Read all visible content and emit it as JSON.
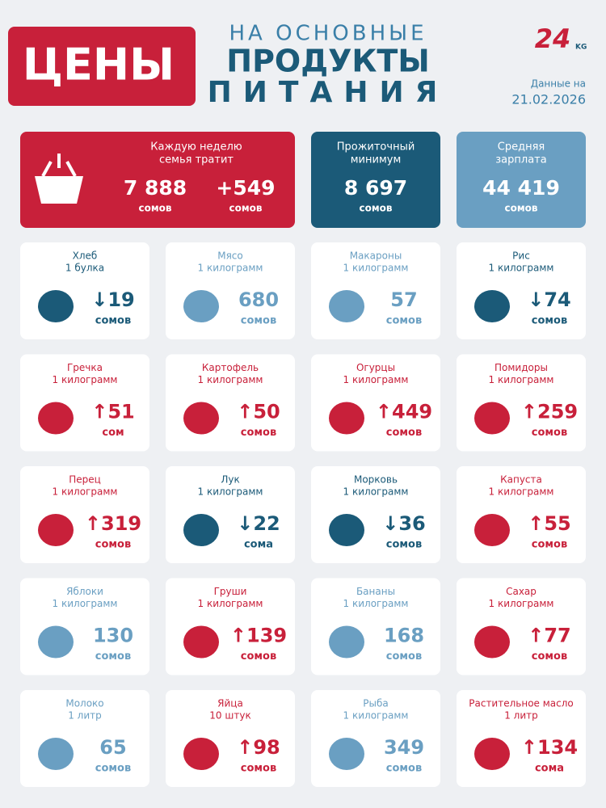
{
  "header": {
    "title": "ЦЕНЫ",
    "subtitle": [
      "НА ОСНОВНЫЕ",
      "ПРОДУКТЫ",
      "ПИТАНИЯ"
    ],
    "logo": "24",
    "logo_suffix": "KG",
    "date_label": "Данные на",
    "date": "21.02.2026"
  },
  "summary": [
    {
      "label": [
        "Каждую неделю",
        "семья тратит"
      ],
      "value": "7 888",
      "unit": "сомов",
      "change": "+549",
      "change_unit": "сомов",
      "color": "#c8203a"
    },
    {
      "label": [
        "Прожиточный",
        "минимум"
      ],
      "value": "8 697",
      "unit": "сомов",
      "color": "#1b5a78"
    },
    {
      "label": [
        "Средняя",
        "зарплата"
      ],
      "value": "44 419",
      "unit": "сомов",
      "color": "#6a9fc2"
    }
  ],
  "items": [
    {
      "name": "Хлеб",
      "quantity": "1 булка",
      "value": "↓19",
      "unit": "сомов",
      "color": "#1b5a78"
    },
    {
      "name": "Мясо",
      "quantity": "1 килограмм",
      "value": "680",
      "unit": "сомов",
      "color": "#6a9fc2"
    },
    {
      "name": "Макароны",
      "quantity": "1 килограмм",
      "value": "57",
      "unit": "сомов",
      "color": "#6a9fc2"
    },
    {
      "name": "Рис",
      "quantity": "1 килограмм",
      "value": "↓74",
      "unit": "сомов",
      "color": "#1b5a78"
    },
    {
      "name": "Гречка",
      "quantity": "1 килограмм",
      "value": "↑51",
      "unit": "сом",
      "color": "#c8203a"
    },
    {
      "name": "Картофель",
      "quantity": "1 килограмм",
      "value": "↑50",
      "unit": "сомов",
      "color": "#c8203a"
    },
    {
      "name": "Огурцы",
      "quantity": "1 килограмм",
      "value": "↑449",
      "unit": "сомов",
      "color": "#c8203a"
    },
    {
      "name": "Помидоры",
      "quantity": "1 килограмм",
      "value": "↑259",
      "unit": "сомов",
      "color": "#c8203a"
    },
    {
      "name": "Перец",
      "quantity": "1 килограмм",
      "value": "↑319",
      "unit": "сомов",
      "color": "#c8203a"
    },
    {
      "name": "Лук",
      "quantity": "1 килограмм",
      "value": "↓22",
      "unit": "сома",
      "color": "#1b5a78"
    },
    {
      "name": "Морковь",
      "quantity": "1 килограмм",
      "value": "↓36",
      "unit": "сомов",
      "color": "#1b5a78"
    },
    {
      "name": "Капуста",
      "quantity": "1 килограмм",
      "value": "↑55",
      "unit": "сомов",
      "color": "#c8203a"
    },
    {
      "name": "Яблоки",
      "quantity": "1 килограмм",
      "value": "130",
      "unit": "сомов",
      "color": "#6a9fc2"
    },
    {
      "name": "Груши",
      "quantity": "1 килограмм",
      "value": "↑139",
      "unit": "сомов",
      "color": "#c8203a"
    },
    {
      "name": "Бананы",
      "quantity": "1 килограмм",
      "value": "168",
      "unit": "сомов",
      "color": "#6a9fc2"
    },
    {
      "name": "Сахар",
      "quantity": "1 килограмм",
      "value": "↑77",
      "unit": "сомов",
      "color": "#c8203a"
    },
    {
      "name": "Молоко",
      "quantity": "1 литр",
      "value": "65",
      "unit": "сомов",
      "color": "#6a9fc2"
    },
    {
      "name": "Яйца",
      "quantity": "10 штук",
      "value": "↑98",
      "unit": "сомов",
      "color": "#c8203a"
    },
    {
      "name": "Рыба",
      "quantity": "1 килограмм",
      "value": "349",
      "unit": "сомов",
      "color": "#6a9fc2"
    },
    {
      "name": "Растительное масло",
      "quantity": "1 литр",
      "value": "↑134",
      "unit": "сома",
      "color": "#c8203a"
    }
  ]
}
